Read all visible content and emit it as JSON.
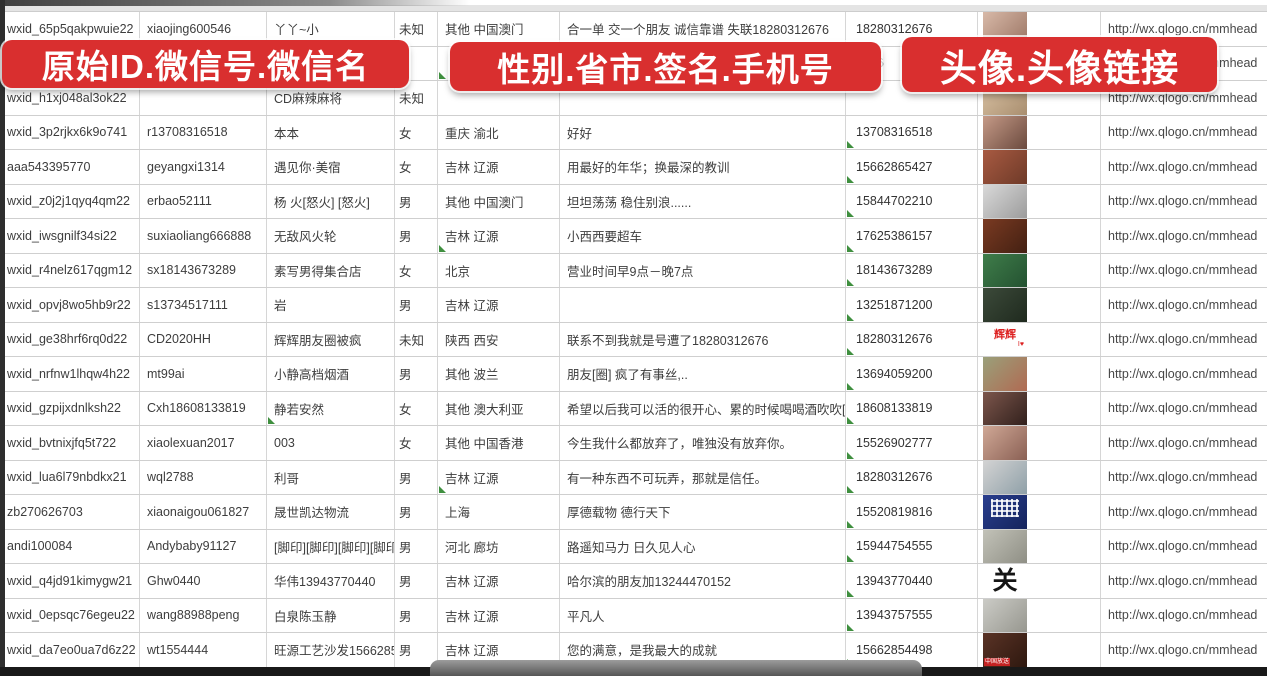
{
  "banners": [
    {
      "text": "原始ID.微信号.微信名",
      "color": "#d92f2f"
    },
    {
      "text": "性别.省市.签名.手机号",
      "color": "#d92f2f"
    },
    {
      "text": "头像.头像链接",
      "color": "#d92f2f"
    }
  ],
  "sheet": {
    "columns": [
      "原始ID",
      "微信号",
      "微信名",
      "性别",
      "省市",
      "签名",
      "手机号",
      "头像",
      "头像链接"
    ],
    "avatar_url_text": "http://wx.qlogo.cn/mmhead",
    "rows": [
      {
        "id": "wxid_65p5qakpwuie22",
        "alias": "xiaojing600546",
        "name": "丫丫~小",
        "gender": "未知",
        "region": "其他 中国澳门",
        "sig": "合一单 交一个朋友 诚信靠谱 失联18280312676",
        "phone": "18280312676",
        "url": "http://wx.qlogo.cn/mmhead",
        "phone_flag": false,
        "region_flag": false,
        "name_flag": false,
        "avatar": {
          "c1": "#d8b9a8",
          "c2": "#9a7463"
        }
      },
      {
        "id": "",
        "alias": "",
        "name": "",
        "gender": "",
        "region": "",
        "sig": "",
        "phone": "5386",
        "url": "http://wx.qlogo.cn/mmhead",
        "phone_flag": false,
        "region_flag": true,
        "name_flag": false,
        "avatar": {
          "c1": "#e6ded6",
          "c2": "#cfc5bb"
        }
      },
      {
        "id": "wxid_h1xj048al3ok22",
        "alias": "",
        "name": "CD麻辣麻将",
        "gender": "未知",
        "region": "",
        "sig": "",
        "phone": "",
        "url": "http://wx.qlogo.cn/mmhead",
        "phone_flag": false,
        "region_flag": false,
        "name_flag": false,
        "avatar": {
          "c1": "#d9c2a4",
          "c2": "#a98e6f"
        }
      },
      {
        "id": "wxid_3p2rjkx6k9o741",
        "alias": "r13708316518",
        "name": "本本",
        "gender": "女",
        "region": "重庆 渝北",
        "sig": "好好",
        "phone": "13708316518",
        "url": "http://wx.qlogo.cn/mmhead",
        "phone_flag": true,
        "region_flag": false,
        "name_flag": false,
        "avatar": {
          "c1": "#c59a87",
          "c2": "#6b4a3e"
        }
      },
      {
        "id": "aaa543395770",
        "alias": "geyangxi1314",
        "name": "遇见你·美宿",
        "gender": "女",
        "region": "吉林 辽源",
        "sig": "用最好的年华；换最深的教训",
        "phone": "15662865427",
        "url": "http://wx.qlogo.cn/mmhead",
        "phone_flag": true,
        "region_flag": false,
        "name_flag": false,
        "avatar": {
          "c1": "#a85a42",
          "c2": "#6e3a28"
        }
      },
      {
        "id": "wxid_z0j2j1qyq4qm22",
        "alias": "erbao52111",
        "name": "杨 火[怒火] [怒火]",
        "gender": "男",
        "region": "其他 中国澳门",
        "sig": "坦坦荡荡 稳住别浪......",
        "phone": "15844702210",
        "url": "http://wx.qlogo.cn/mmhead",
        "phone_flag": true,
        "region_flag": false,
        "name_flag": false,
        "avatar": {
          "c1": "#d9d9d9",
          "c2": "#9c9c9c"
        }
      },
      {
        "id": "wxid_iwsgnilf34si22",
        "alias": "suxiaoliang666888",
        "name": "无敌风火轮",
        "gender": "男",
        "region": "吉林 辽源",
        "sig": "小西西要超车",
        "phone": "17625386157",
        "url": "http://wx.qlogo.cn/mmhead",
        "phone_flag": true,
        "region_flag": true,
        "name_flag": false,
        "avatar": {
          "c1": "#7a3a22",
          "c2": "#432012"
        }
      },
      {
        "id": "wxid_r4nelz617qgm12",
        "alias": "sx18143673289",
        "name": "素写男得集合店",
        "gender": "女",
        "region": "北京",
        "sig": "营业时间早9点－晚7点",
        "phone": "18143673289",
        "url": "http://wx.qlogo.cn/mmhead",
        "phone_flag": true,
        "region_flag": false,
        "name_flag": false,
        "avatar": {
          "c1": "#3f7d4a",
          "c2": "#245231"
        }
      },
      {
        "id": "wxid_opvj8wo5hb9r22",
        "alias": "s13734517111",
        "name": "岩",
        "gender": "男",
        "region": "吉林 辽源",
        "sig": "",
        "phone": "13251871200",
        "url": "http://wx.qlogo.cn/mmhead",
        "phone_flag": true,
        "region_flag": false,
        "name_flag": false,
        "avatar": {
          "c1": "#3c4a3a",
          "c2": "#1f2a1e"
        }
      },
      {
        "id": "wxid_ge38hrf6rq0d22",
        "alias": "CD2020HH",
        "name": "辉辉朋友圈被疯",
        "gender": "未知",
        "region": "陕西 西安",
        "sig": "联系不到我就是号遭了18280312676",
        "phone": "18280312676",
        "url": "http://wx.qlogo.cn/mmhead",
        "phone_flag": true,
        "region_flag": false,
        "name_flag": false,
        "avatar": {
          "text": "辉辉",
          "sub": "I♥",
          "c1": "#ffffff",
          "c2": "#ffffff"
        }
      },
      {
        "id": "wxid_nrfnw1lhqw4h22",
        "alias": "mt99ai",
        "name": "小静高档烟酒",
        "gender": "男",
        "region": "其他 波兰",
        "sig": "朋友[圈] 疯了有事丝,..",
        "phone": "13694059200",
        "url": "http://wx.qlogo.cn/mmhead",
        "phone_flag": true,
        "region_flag": false,
        "name_flag": false,
        "avatar": {
          "c1": "#9aa07a",
          "c2": "#b06a52"
        }
      },
      {
        "id": "wxid_gzpijxdnlksh22",
        "alias": "Cxh18608133819",
        "name": "静若安然",
        "gender": "女",
        "region": "其他 澳大利亚",
        "sig": "希望以后我可以活的很开心、累的时候喝喝酒吹吹[",
        "phone": "18608133819",
        "url": "http://wx.qlogo.cn/mmhead",
        "phone_flag": true,
        "region_flag": false,
        "name_flag": true,
        "avatar": {
          "c1": "#7c564c",
          "c2": "#31201c"
        }
      },
      {
        "id": "wxid_bvtnixjfq5t722",
        "alias": "xiaolexuan2017",
        "name": "003",
        "gender": "女",
        "region": "其他 中国香港",
        "sig": "今生我什么都放弃了，唯独没有放弃你。",
        "phone": "15526902777",
        "url": "http://wx.qlogo.cn/mmhead",
        "phone_flag": true,
        "region_flag": false,
        "name_flag": false,
        "avatar": {
          "c1": "#d0a896",
          "c2": "#8a6054"
        }
      },
      {
        "id": "wxid_lua6l79nbdkx21",
        "alias": "wql2788",
        "name": "利哥",
        "gender": "男",
        "region": "吉林 辽源",
        "sig": "有一种东西不可玩弄，那就是信任。",
        "phone": "18280312676",
        "url": "http://wx.qlogo.cn/mmhead",
        "phone_flag": true,
        "region_flag": true,
        "name_flag": false,
        "avatar": {
          "c1": "#d3d3d3",
          "c2": "#8fa0a8"
        }
      },
      {
        "id": "zb270626703",
        "alias": "xiaonaigou061827",
        "name": "晟世凯达物流",
        "gender": "男",
        "region": "上海",
        "sig": "厚德载物 德行天下",
        "phone": "15520819816",
        "url": "http://wx.qlogo.cn/mmhead",
        "phone_flag": true,
        "region_flag": false,
        "name_flag": false,
        "avatar": {
          "c1": "#2a3f8f",
          "c2": "#14235c",
          "qr": true
        }
      },
      {
        "id": "andi100084",
        "alias": "Andybaby91127",
        "name": "[脚印][脚印][脚印][脚印",
        "gender": "男",
        "region": "河北 廊坊",
        "sig": "路遥知马力 日久见人心",
        "phone": "15944754555",
        "url": "http://wx.qlogo.cn/mmhead",
        "phone_flag": true,
        "region_flag": false,
        "name_flag": false,
        "avatar": {
          "c1": "#c2c2b8",
          "c2": "#8f8f85"
        }
      },
      {
        "id": "wxid_q4jd91kimygw21",
        "alias": "Ghw0440",
        "name": "华伟13943770440",
        "gender": "男",
        "region": "吉林 辽源",
        "sig": "哈尔滨的朋友加13244470152",
        "phone": "13943770440",
        "url": "http://wx.qlogo.cn/mmhead",
        "phone_flag": true,
        "region_flag": false,
        "name_flag": false,
        "avatar": {
          "text": "关",
          "big": true,
          "c1": "#ffffff",
          "c2": "#ffffff"
        }
      },
      {
        "id": "wxid_0epsqc76egeu22",
        "alias": "wang88988peng",
        "name": "白泉陈玉静",
        "gender": "男",
        "region": "吉林 辽源",
        "sig": "平凡人",
        "phone": "13943757555",
        "url": "http://wx.qlogo.cn/mmhead",
        "phone_flag": true,
        "region_flag": false,
        "name_flag": false,
        "avatar": {
          "c1": "#cbcbc6",
          "c2": "#97978f"
        }
      },
      {
        "id": "wxid_da7eo0ua7d6z22",
        "alias": "wt1554444",
        "name": "旺源工艺沙发15662854",
        "gender": "男",
        "region": "吉林 辽源",
        "sig": "您的满意，是我最大的成就",
        "phone": "15662854498",
        "url": "http://wx.qlogo.cn/mmhead",
        "phone_flag": true,
        "region_flag": false,
        "name_flag": false,
        "avatar": {
          "c1": "#5a3326",
          "c2": "#2e180f",
          "badge": "中国放送"
        }
      },
      {
        "id": "",
        "alias": "",
        "name": "",
        "gender": "",
        "region": "",
        "sig": "",
        "phone": "",
        "url": "",
        "phone_flag": false,
        "region_flag": false,
        "name_flag": false,
        "avatar": {
          "c1": "#c8d4dc",
          "c2": "#8fa6b5"
        }
      }
    ]
  },
  "footer": {
    "bar_color": "#191919",
    "pill_color": "#7c7c7c"
  }
}
